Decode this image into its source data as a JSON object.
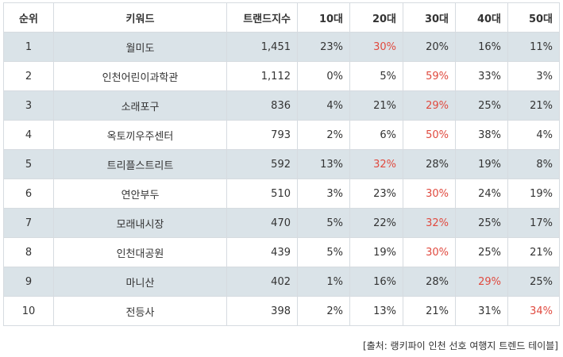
{
  "headers": [
    "순위",
    "키워드",
    "트랜드지수",
    "10대",
    "20대",
    "30대",
    "40대",
    "50대"
  ],
  "highlight_color": "#e04a3f",
  "shade_color": "#dae3e8",
  "rows": [
    {
      "rank": "1",
      "keyword": "월미도",
      "index": "1,451",
      "ages": [
        "23%",
        "30%",
        "20%",
        "16%",
        "11%"
      ],
      "highlight": 1
    },
    {
      "rank": "2",
      "keyword": "인천어린이과학관",
      "index": "1,112",
      "ages": [
        "0%",
        "5%",
        "59%",
        "33%",
        "3%"
      ],
      "highlight": 2
    },
    {
      "rank": "3",
      "keyword": "소래포구",
      "index": "836",
      "ages": [
        "4%",
        "21%",
        "29%",
        "25%",
        "21%"
      ],
      "highlight": 2
    },
    {
      "rank": "4",
      "keyword": "옥토끼우주센터",
      "index": "793",
      "ages": [
        "2%",
        "6%",
        "50%",
        "38%",
        "4%"
      ],
      "highlight": 2
    },
    {
      "rank": "5",
      "keyword": "트리플스트리트",
      "index": "592",
      "ages": [
        "13%",
        "32%",
        "28%",
        "19%",
        "8%"
      ],
      "highlight": 1
    },
    {
      "rank": "6",
      "keyword": "연안부두",
      "index": "510",
      "ages": [
        "3%",
        "23%",
        "30%",
        "24%",
        "19%"
      ],
      "highlight": 2
    },
    {
      "rank": "7",
      "keyword": "모래내시장",
      "index": "470",
      "ages": [
        "5%",
        "22%",
        "32%",
        "25%",
        "17%"
      ],
      "highlight": 2
    },
    {
      "rank": "8",
      "keyword": "인천대공원",
      "index": "439",
      "ages": [
        "5%",
        "19%",
        "30%",
        "25%",
        "21%"
      ],
      "highlight": 2
    },
    {
      "rank": "9",
      "keyword": "마니산",
      "index": "402",
      "ages": [
        "1%",
        "16%",
        "28%",
        "29%",
        "25%"
      ],
      "highlight": 3
    },
    {
      "rank": "10",
      "keyword": "전등사",
      "index": "398",
      "ages": [
        "2%",
        "13%",
        "21%",
        "31%",
        "34%"
      ],
      "highlight": 4
    }
  ],
  "source": "[출처: 랭키파이 인천 선호 여행지 트렌드 테이블]"
}
